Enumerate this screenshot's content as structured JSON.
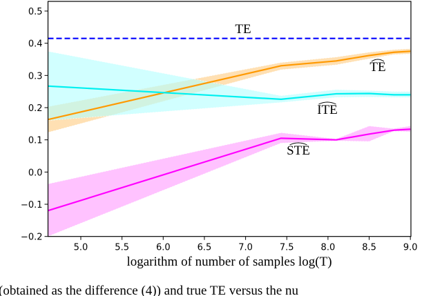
{
  "chart_data": {
    "type": "line",
    "title": "",
    "xlabel": "logarithm of number of samples log(T)",
    "ylabel": "",
    "xlim": [
      4.6,
      9.0
    ],
    "ylim": [
      -0.2,
      0.53
    ],
    "xticks": [
      "5.0",
      "5.5",
      "6.0",
      "6.5",
      "7.0",
      "7.5",
      "8.0",
      "8.5",
      "9.0"
    ],
    "yticks": [
      "−0.2",
      "−0.1",
      "0.0",
      "0.1",
      "0.2",
      "0.3",
      "0.4",
      "0.5"
    ],
    "grid": false,
    "x": [
      4.6,
      7.43,
      8.1,
      8.5,
      8.8,
      9.0
    ],
    "series": [
      {
        "name": "TE",
        "label_style": "plain",
        "color": "#0000ff",
        "dashed": true,
        "values": [
          0.415,
          0.415,
          0.415,
          0.415,
          0.415,
          0.415
        ]
      },
      {
        "name": "TE",
        "label_style": "hat",
        "color": "#ff9900",
        "band_color": "#ffcc80",
        "values": [
          0.163,
          0.33,
          0.345,
          0.362,
          0.372,
          0.375
        ],
        "lower": [
          0.123,
          0.318,
          0.333,
          0.352,
          0.365,
          0.367
        ],
        "upper": [
          0.203,
          0.34,
          0.357,
          0.372,
          0.38,
          0.383
        ]
      },
      {
        "name": "ITE",
        "label_style": "hat",
        "color": "#00f0f0",
        "band_color": "#b3ffff",
        "values": [
          0.267,
          0.226,
          0.243,
          0.244,
          0.24,
          0.24
        ],
        "lower": [
          0.16,
          0.216,
          0.232,
          0.233,
          0.232,
          0.232
        ],
        "upper": [
          0.375,
          0.237,
          0.256,
          0.253,
          0.25,
          0.25
        ]
      },
      {
        "name": "STE",
        "label_style": "hat",
        "color": "#ff00ff",
        "band_color": "#ff99ff",
        "values": [
          -0.12,
          0.105,
          0.1,
          0.118,
          0.13,
          0.133
        ],
        "lower": [
          -0.2,
          0.09,
          0.097,
          0.095,
          0.127,
          0.125
        ],
        "upper": [
          -0.037,
          0.122,
          0.103,
          0.143,
          0.135,
          0.143
        ]
      }
    ]
  },
  "caption_fragment": "(obtained as the difference (4)) and true TE versus the nu"
}
